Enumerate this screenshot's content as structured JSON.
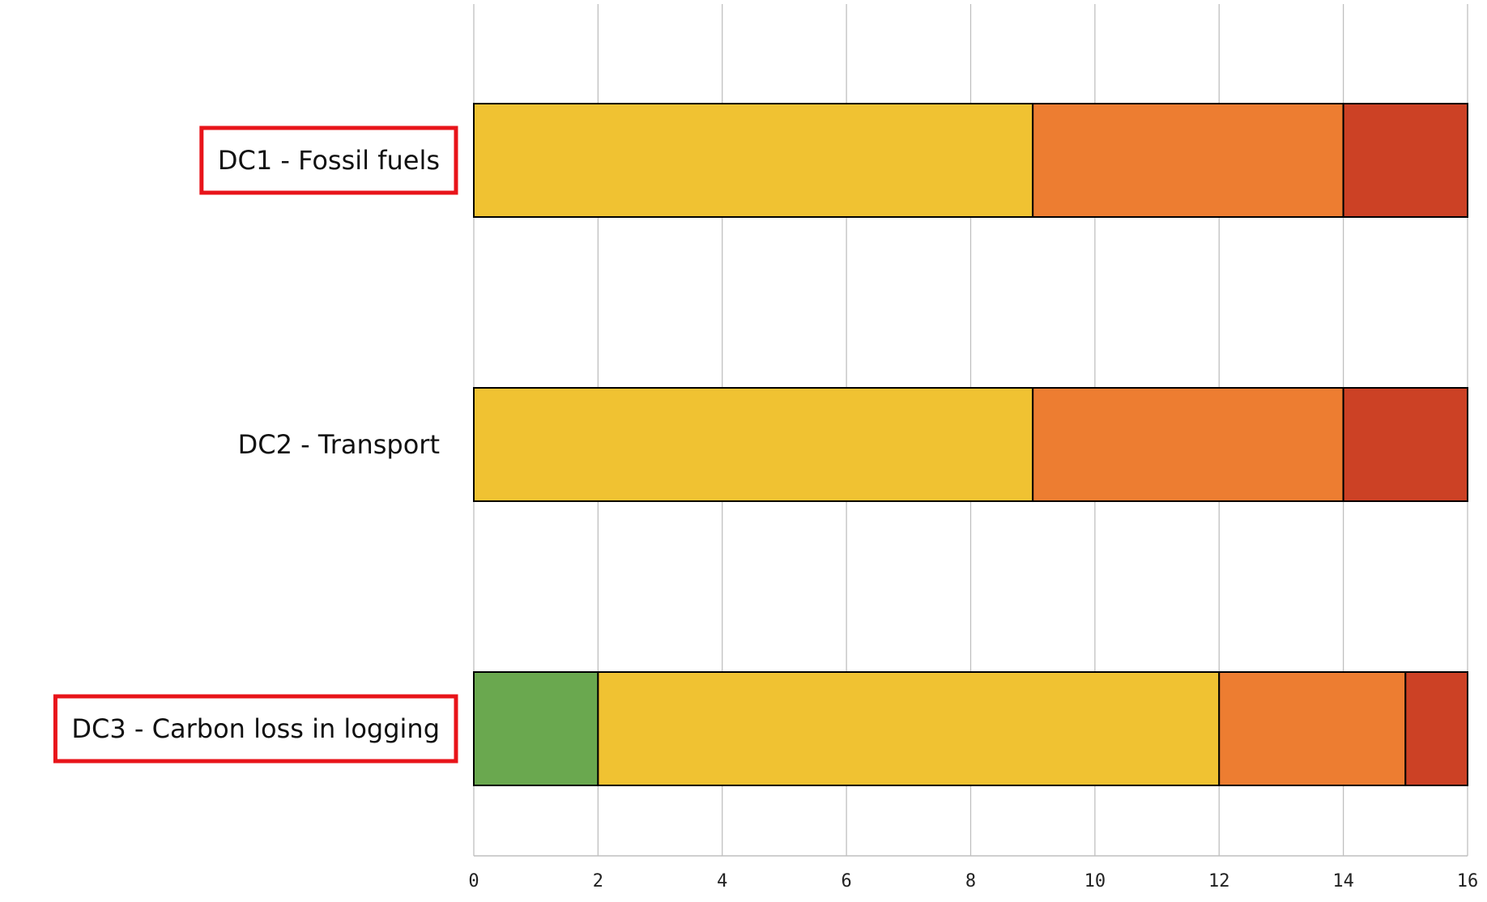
{
  "colors": {
    "background": "#ffffff",
    "gridline": "#bfbfbf",
    "bar_outline": "#000000",
    "highlight_box": "#e8141a",
    "segments": [
      "#6aa84f",
      "#f0c232",
      "#ed7d31",
      "#cc4125"
    ]
  },
  "chart_data": {
    "type": "bar",
    "orientation": "horizontal",
    "stacked": true,
    "title": "",
    "xlabel": "",
    "ylabel": "",
    "xlim": [
      0,
      16
    ],
    "x_ticks": [
      0,
      2,
      4,
      6,
      8,
      10,
      12,
      14,
      16
    ],
    "grid": "vertical",
    "legend": "none",
    "categories": [
      {
        "label": "DC1 - Fossil fuels",
        "highlighted": true
      },
      {
        "label": "DC2 - Transport",
        "highlighted": false
      },
      {
        "label": "DC3 - Carbon  loss in logging",
        "highlighted": true
      }
    ],
    "series": [
      {
        "color": "#6aa84f",
        "values": [
          0,
          0,
          2
        ]
      },
      {
        "color": "#f0c232",
        "values": [
          9,
          9,
          10
        ]
      },
      {
        "color": "#ed7d31",
        "values": [
          5,
          5,
          3
        ]
      },
      {
        "color": "#cc4125",
        "values": [
          2,
          2,
          1
        ]
      }
    ]
  }
}
